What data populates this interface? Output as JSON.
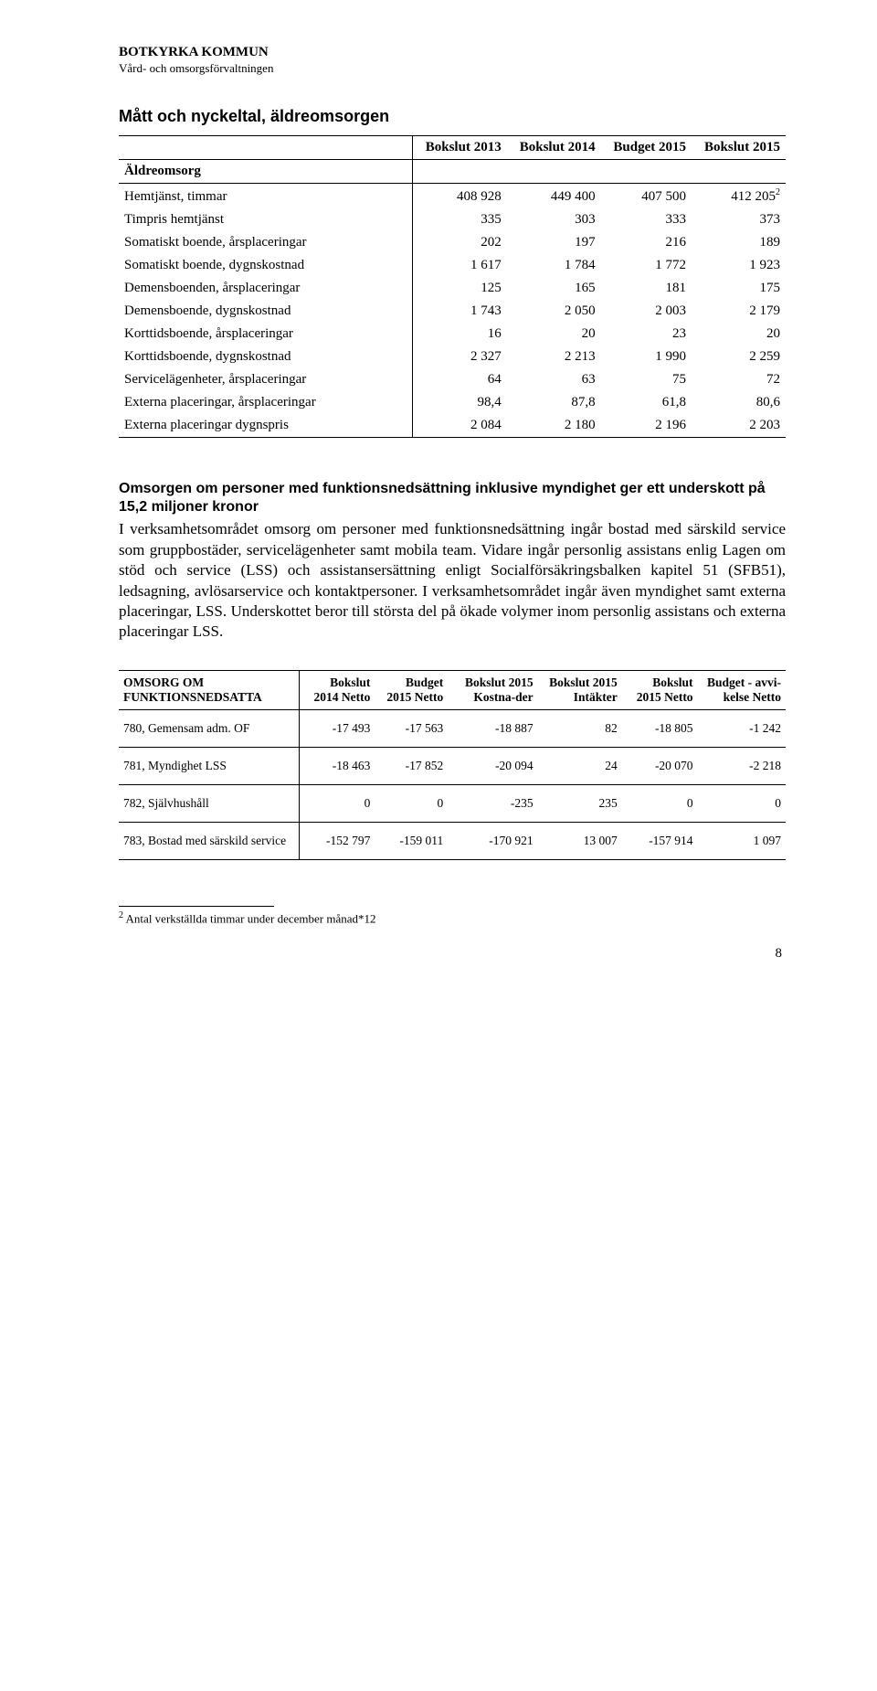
{
  "header": {
    "org": "BOTKYRKA KOMMUN",
    "dept": "Vård- och omsorgsförvaltningen"
  },
  "section1": {
    "title": "Mått och nyckeltal, äldreomsorgen",
    "columns": [
      "",
      "Bokslut 2013",
      "Bokslut 2014",
      "Budget 2015",
      "Bokslut 2015"
    ],
    "group_label": "Äldreomsorg",
    "rows": [
      {
        "label": "Hemtjänst, timmar",
        "sup": "2",
        "v": [
          "408 928",
          "449 400",
          "407 500",
          "412 205"
        ]
      },
      {
        "label": "Timpris hemtjänst",
        "v": [
          "335",
          "303",
          "333",
          "373"
        ]
      },
      {
        "label": "Somatiskt boende, årsplaceringar",
        "v": [
          "202",
          "197",
          "216",
          "189"
        ]
      },
      {
        "label": "Somatiskt boende, dygnskostnad",
        "v": [
          "1 617",
          "1 784",
          "1 772",
          "1 923"
        ]
      },
      {
        "label": "Demensboenden, årsplaceringar",
        "v": [
          "125",
          "165",
          "181",
          "175"
        ]
      },
      {
        "label": "Demensboende, dygnskostnad",
        "v": [
          "1 743",
          "2 050",
          "2 003",
          "2 179"
        ]
      },
      {
        "label": "Korttidsboende, årsplaceringar",
        "v": [
          "16",
          "20",
          "23",
          "20"
        ]
      },
      {
        "label": "Korttidsboende, dygnskostnad",
        "v": [
          "2 327",
          "2 213",
          "1 990",
          "2 259"
        ]
      },
      {
        "label": "Servicelägenheter, årsplaceringar",
        "v": [
          "64",
          "63",
          "75",
          "72"
        ]
      },
      {
        "label": "Externa placeringar, årsplaceringar",
        "v": [
          "98,4",
          "87,8",
          "61,8",
          "80,6"
        ]
      },
      {
        "label": "Externa placeringar dygnspris",
        "v": [
          "2 084",
          "2 180",
          "2 196",
          "2 203"
        ]
      }
    ]
  },
  "section2": {
    "subhead": "Omsorgen om personer med funktionsnedsättning inklusive myndighet ger ett underskott på 15,2 miljoner kronor",
    "body": "I verksamhetsområdet omsorg om personer med funktionsnedsättning ingår bostad med särskild service som gruppbostäder, servicelägenheter samt mobila team. Vidare ingår personlig assistans enlig Lagen om stöd och service (LSS) och assistansersättning enligt Socialförsäkringsbalken kapitel 51 (SFB51), ledsagning, avlösarservice och kontaktpersoner. I verksamhetsområdet ingår även myndighet samt externa placeringar, LSS. Underskottet beror till största del på ökade volymer inom personlig assistans och externa placeringar LSS."
  },
  "section3": {
    "title": "OMSORG OM FUNKTIONSNEDSATTA",
    "columns": [
      "Bokslut 2014 Netto",
      "Budget 2015 Netto",
      "Bokslut 2015 Kostna-der",
      "Bokslut 2015 Intäkter",
      "Bokslut 2015 Netto",
      "Budget - avvi-kelse Netto"
    ],
    "rows": [
      {
        "label": "780, Gemensam adm. OF",
        "v": [
          "-17 493",
          "-17 563",
          "-18 887",
          "82",
          "-18 805",
          "-1 242"
        ]
      },
      {
        "label": "781, Myndighet LSS",
        "v": [
          "-18 463",
          "-17 852",
          "-20 094",
          "24",
          "-20 070",
          "-2 218"
        ]
      },
      {
        "label": "782, Självhushåll",
        "v": [
          "0",
          "0",
          "-235",
          "235",
          "0",
          "0"
        ]
      },
      {
        "label": "783, Bostad med särskild service",
        "v": [
          "-152 797",
          "-159 011",
          "-170 921",
          "13 007",
          "-157 914",
          "1 097"
        ]
      }
    ]
  },
  "footnote": {
    "marker": "2",
    "text": "Antal verkställda timmar under december månad*12"
  },
  "page_number": "8"
}
